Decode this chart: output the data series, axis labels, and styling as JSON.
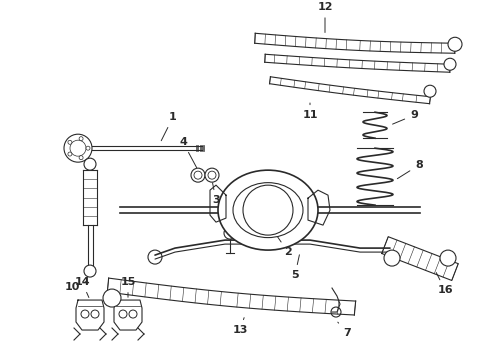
{
  "bg_color": "#ffffff",
  "line_color": "#2a2a2a",
  "fig_width": 4.9,
  "fig_height": 3.6,
  "dpi": 100,
  "label_fontsize": 8,
  "label_fontweight": "bold"
}
